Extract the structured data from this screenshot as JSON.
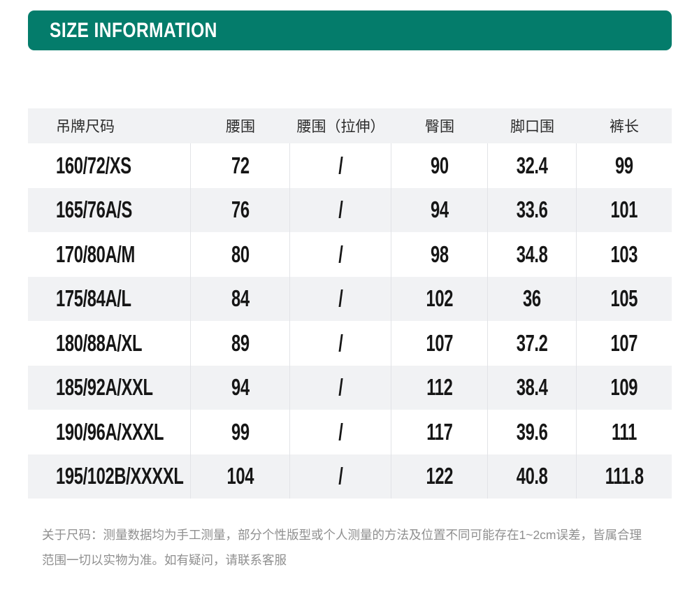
{
  "header": {
    "title": "SIZE INFORMATION"
  },
  "colors": {
    "accent_teal": "#047c6b",
    "stripe_gray": "#f1f2f4",
    "divider_gray": "#e2e3e7",
    "value_text": "#161616",
    "note_gray": "#8f8f8f"
  },
  "table": {
    "columns": [
      "吊牌尺码",
      "腰围",
      "腰围（拉伸）",
      "臀围",
      "脚口围",
      "裤长"
    ],
    "rows": [
      [
        "160/72/XS",
        "72",
        "/",
        "90",
        "32.4",
        "99"
      ],
      [
        "165/76A/S",
        "76",
        "/",
        "94",
        "33.6",
        "101"
      ],
      [
        "170/80A/M",
        "80",
        "/",
        "98",
        "34.8",
        "103"
      ],
      [
        "175/84A/L",
        "84",
        "/",
        "102",
        "36",
        "105"
      ],
      [
        "180/88A/XL",
        "89",
        "/",
        "107",
        "37.2",
        "107"
      ],
      [
        "185/92A/XXL",
        "94",
        "/",
        "112",
        "38.4",
        "109"
      ],
      [
        "190/96A/XXXL",
        "99",
        "/",
        "117",
        "39.6",
        "111"
      ],
      [
        "195/102B/XXXXL",
        "104",
        "/",
        "122",
        "40.8",
        "111.8"
      ]
    ]
  },
  "note": {
    "line1": "关于尺码：测量数据均为手工测量，部分个性版型或个人测量的方法及位置不同可能存在1~2cm误差，皆属合理",
    "line2": "范围一切以实物为准。如有疑问，请联系客服"
  }
}
